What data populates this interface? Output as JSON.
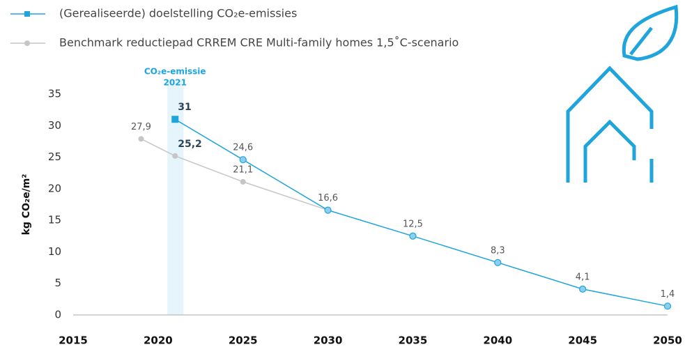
{
  "chart_data": {
    "type": "line",
    "axis_label": "kg CO₂e/m²",
    "annotation": [
      "CO₂e-emissie",
      "2021"
    ],
    "highlight_x": 2021,
    "xlim": [
      2015,
      2050
    ],
    "xticks": [
      2015,
      2020,
      2025,
      2030,
      2035,
      2040,
      2045,
      2050
    ],
    "ylim": [
      0,
      35
    ],
    "yticks": [
      0,
      5,
      10,
      15,
      20,
      25,
      30,
      35
    ],
    "series": [
      {
        "name": "(Gerealiseerde) doelstelling CO₂e-emissies",
        "color": "#1fa4dc",
        "x": [
          2021,
          2025,
          2030,
          2035,
          2040,
          2045,
          2050
        ],
        "values": [
          31,
          24.6,
          16.6,
          12.5,
          8.3,
          4.1,
          1.4
        ],
        "value_labels": [
          "31",
          "24,6",
          "16,6",
          "12,5",
          "8,3",
          "4,1",
          "1,4"
        ]
      },
      {
        "name": "Benchmark reductiepad CRREM CRE Multi-family homes 1,5˚C-scenario",
        "color": "#c6c6c6",
        "x": [
          2019,
          2021,
          2025,
          2030
        ],
        "values": [
          27.9,
          25.2,
          21.1,
          16.6
        ],
        "value_labels": [
          "27,9",
          "25,2",
          "21,1",
          null
        ]
      }
    ]
  }
}
